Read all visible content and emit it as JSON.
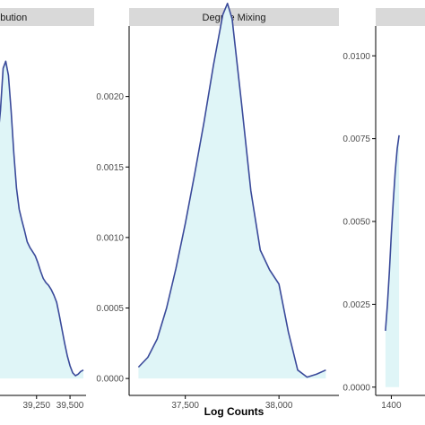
{
  "axis_title": "Log Counts",
  "colors": {
    "fill": "#dff5f7",
    "line": "#3a4a9a",
    "strip": "#d9d9d9",
    "axis": "#000000"
  },
  "chart_data": [
    {
      "type": "area",
      "title": "Degree Distribution",
      "title_visible": "ibution",
      "xlabel": "",
      "ylabel": "",
      "xlim": [
        38950,
        39620
      ],
      "ylim": [
        -0.00012,
        0.0025
      ],
      "y_ticks": [],
      "y_tick_labels": [],
      "x_ticks": [
        39250,
        39500
      ],
      "x_tick_labels": [
        "39,250",
        "39,500"
      ],
      "x": [
        38950,
        38980,
        39000,
        39020,
        39040,
        39060,
        39080,
        39100,
        39120,
        39140,
        39160,
        39180,
        39200,
        39220,
        39240,
        39260,
        39280,
        39300,
        39320,
        39340,
        39360,
        39380,
        39400,
        39420,
        39440,
        39460,
        39480,
        39500,
        39520,
        39540,
        39560,
        39580,
        39600
      ],
      "y": [
        0.0016,
        0.0019,
        0.0022,
        0.00225,
        0.00215,
        0.0019,
        0.0016,
        0.00135,
        0.0012,
        0.00112,
        0.00105,
        0.00097,
        0.00093,
        0.0009,
        0.00087,
        0.00082,
        0.00076,
        0.00071,
        0.00068,
        0.00066,
        0.00063,
        0.00059,
        0.00054,
        0.00045,
        0.00035,
        0.00025,
        0.00016,
        9e-05,
        4e-05,
        2e-05,
        3e-05,
        5e-05,
        6e-05
      ]
    },
    {
      "type": "area",
      "title": "Degree Mixing",
      "xlabel": "",
      "ylabel": "",
      "xlim": [
        37200,
        38320
      ],
      "ylim": [
        -0.00012,
        0.0025
      ],
      "y_ticks": [
        0,
        0.0005,
        0.001,
        0.0015,
        0.002
      ],
      "y_tick_labels": [
        "0.0000",
        "0.0005",
        "0.0010",
        "0.0015",
        "0.0020"
      ],
      "x_ticks": [
        37500,
        38000
      ],
      "x_tick_labels": [
        "37,500",
        "38,000"
      ],
      "x": [
        37250,
        37300,
        37350,
        37400,
        37450,
        37500,
        37550,
        37600,
        37650,
        37700,
        37725,
        37750,
        37800,
        37850,
        37900,
        37950,
        38000,
        38050,
        38100,
        38150,
        38200,
        38250
      ],
      "y": [
        8e-05,
        0.00015,
        0.00028,
        0.0005,
        0.00078,
        0.0011,
        0.00145,
        0.00182,
        0.00222,
        0.00258,
        0.00266,
        0.00255,
        0.00195,
        0.00133,
        0.00091,
        0.00077,
        0.00067,
        0.00033,
        6e-05,
        1e-05,
        3e-05,
        6e-05
      ]
    },
    {
      "type": "area",
      "title": "",
      "xlabel": "",
      "ylabel": "",
      "xlim": [
        1360,
        1500
      ],
      "ylim": [
        -0.00025,
        0.0109
      ],
      "y_ticks": [
        0,
        0.0025,
        0.005,
        0.0075,
        0.01
      ],
      "y_tick_labels": [
        "0.0000",
        "0.0025",
        "0.0050",
        "0.0075",
        "0.0100"
      ],
      "x_ticks": [
        1400
      ],
      "x_tick_labels": [
        "1400"
      ],
      "x": [
        1385,
        1390,
        1395,
        1400,
        1405,
        1410,
        1415,
        1420
      ],
      "y": [
        0.0017,
        0.0025,
        0.0035,
        0.0046,
        0.0056,
        0.0065,
        0.0072,
        0.0076
      ]
    }
  ]
}
